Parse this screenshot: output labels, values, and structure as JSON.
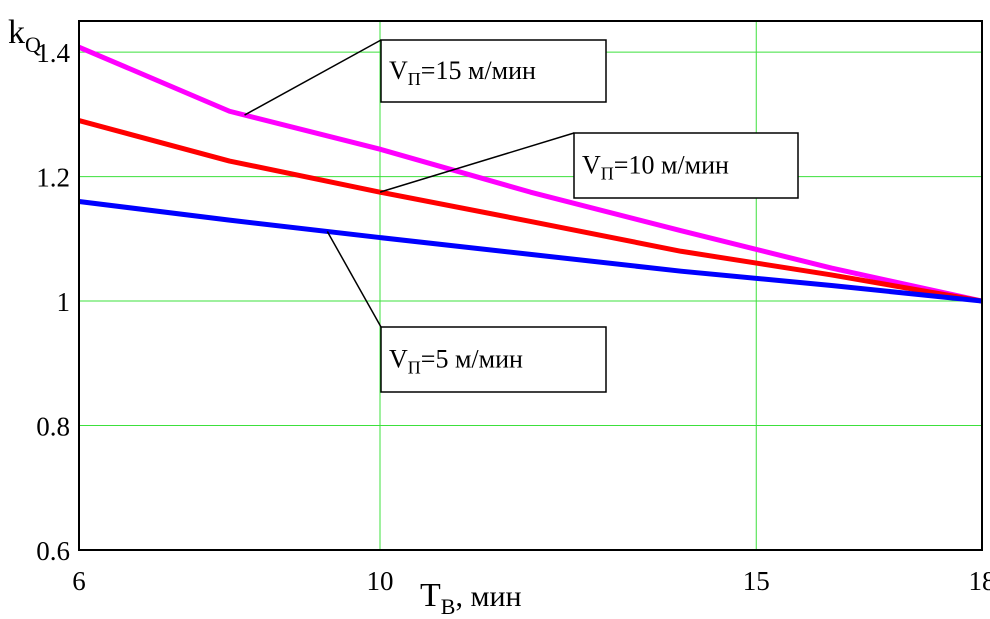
{
  "chart_data": {
    "type": "line",
    "x": [
      6,
      8,
      10,
      12,
      14,
      16,
      18
    ],
    "xticks": [
      6,
      10,
      15,
      18
    ],
    "yticks": [
      "0.6",
      "0.8",
      "1",
      "1.2",
      "1.4"
    ],
    "xlim": [
      6,
      18
    ],
    "ylim": [
      0.6,
      1.45
    ],
    "grid": true,
    "ylabel": {
      "main": "k",
      "sub": "Q"
    },
    "xlabel": {
      "main": "T",
      "sub": "B",
      "rest": ", мин"
    },
    "series": [
      {
        "name": "VП=15 м/мин",
        "label": {
          "main": "V",
          "sub": "П",
          "rest": "=15 м/мин"
        },
        "color": "#ff00ff",
        "values": [
          1.408,
          1.305,
          1.244,
          1.175,
          1.113,
          1.053,
          1.0
        ]
      },
      {
        "name": "VП=10 м/мин",
        "label": {
          "main": "V",
          "sub": "П",
          "rest": "=10 м/мин"
        },
        "color": "#ff0000",
        "values": [
          1.29,
          1.225,
          1.175,
          1.128,
          1.08,
          1.042,
          1.0
        ]
      },
      {
        "name": "VП=5 м/мин",
        "label": {
          "main": "V",
          "sub": "П",
          "rest": "=5 м/мин"
        },
        "color": "#0000ff",
        "values": [
          1.16,
          1.13,
          1.102,
          1.075,
          1.048,
          1.025,
          1.0
        ]
      }
    ]
  }
}
